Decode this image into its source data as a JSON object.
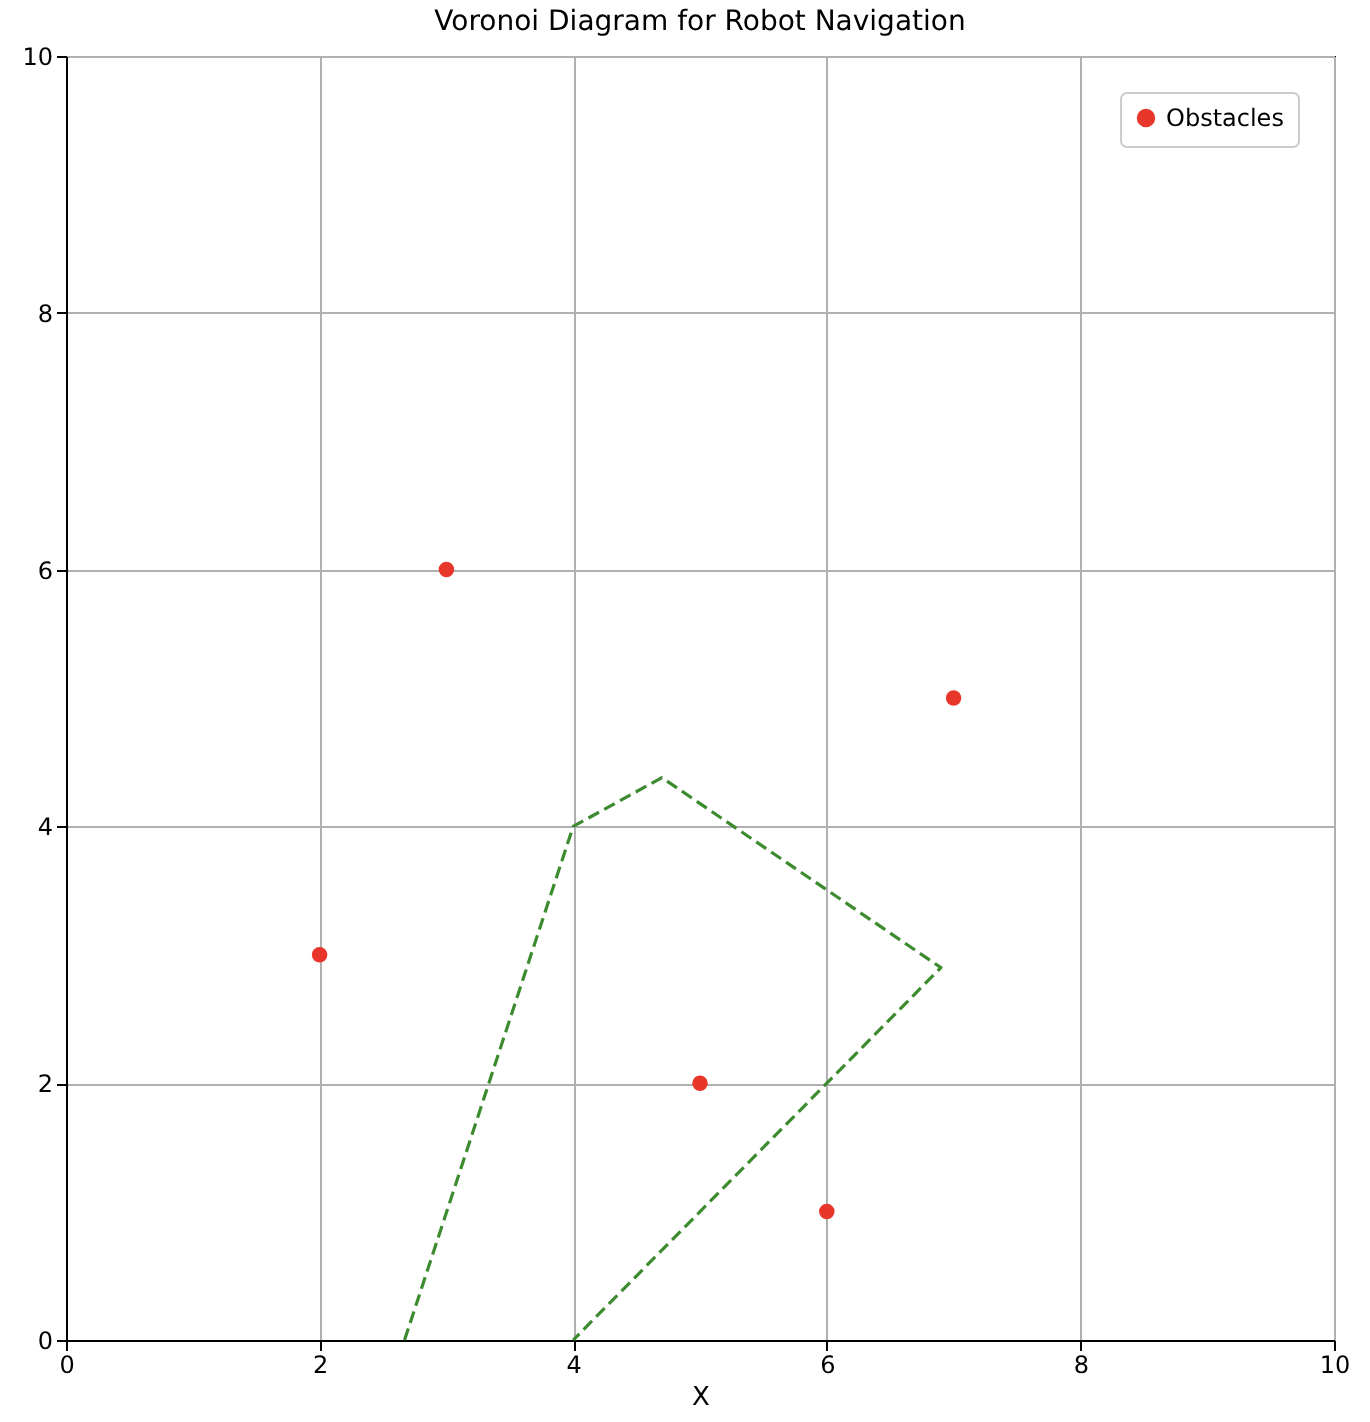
{
  "chart_data": {
    "type": "scatter",
    "title": "Voronoi Diagram for Robot Navigation",
    "xlabel": "X",
    "xlim": [
      0,
      10
    ],
    "ylim": [
      0,
      10
    ],
    "xticks": [
      0,
      2,
      4,
      6,
      8,
      10
    ],
    "yticks": [
      0,
      2,
      4,
      6,
      8,
      10
    ],
    "grid": true,
    "legend": "top right",
    "series": [
      {
        "name": "Obstacles",
        "type": "scatter",
        "marker": "circle",
        "color": "#e8372a",
        "x": [
          2,
          3,
          7,
          5,
          6
        ],
        "values": [
          3,
          6,
          5,
          2,
          1
        ]
      },
      {
        "type": "line",
        "line_style": "dashed",
        "color": "#3d8b2f",
        "x": [
          2.67,
          4,
          4.7,
          6.9,
          4
        ],
        "values": [
          0,
          4,
          4.38,
          2.9,
          0
        ]
      }
    ]
  }
}
